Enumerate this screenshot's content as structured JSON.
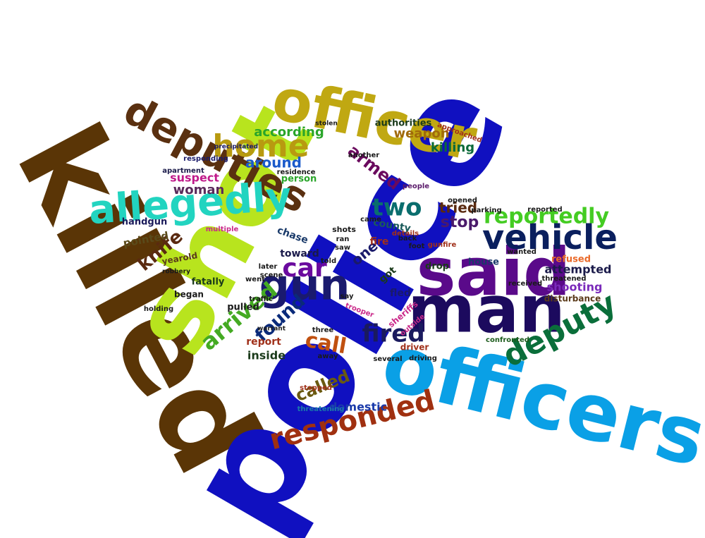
{
  "words": {
    "killed": "killed",
    "police": "police",
    "shot": "shot",
    "officers": "officers",
    "officer": "officer",
    "said": "said",
    "man": "man",
    "deputies": "deputies",
    "allegedly": "allegedly",
    "gun": "gun",
    "home": "home",
    "vehicle": "vehicle",
    "deputy": "deputy",
    "responded": "responded",
    "reportedly": "reportedly",
    "fired": "fired",
    "arrived": "arrived",
    "car": "car",
    "two": "two",
    "call": "call",
    "found": "found",
    "knife": "knife",
    "called": "called",
    "armed": "armed",
    "stop": "stop",
    "tried": "tried",
    "woman": "woman",
    "suspect": "suspect",
    "around": "around",
    "according": "according",
    "weapon": "weapon",
    "killing": "killing",
    "authorities": "authorities",
    "attempted": "attempted",
    "shooting": "shooting",
    "disturbance": "disturbance",
    "domestic": "domestic",
    "inside": "inside",
    "report": "report",
    "handgun": "handgun",
    "pointed": "pointed",
    "fatally": "fatally",
    "pulled": "pulled",
    "fled": "fled",
    "house": "house",
    "toward": "toward",
    "drop": "drop",
    "chase": "chase",
    "county": "county",
    "person": "person",
    "apartment": "apartment",
    "began": "began",
    "yearold": "yearold",
    "one": "one",
    "got": "got",
    "fire": "fire",
    "shots": "shots",
    "driver": "driver",
    "refused": "refused",
    "wanted": "wanted",
    "confronted": "confronted",
    "approached": "approached",
    "reported": "reported",
    "sheriffs": "sheriffs",
    "threatening": "threatening",
    "stopped": "stopped",
    "gunfire": "gunfire",
    "people": "people",
    "details": "details",
    "outside": "outside",
    "trooper": "trooper",
    "residence": "residence",
    "responding": "responding",
    "several": "several",
    "driving": "driving",
    "holding": "holding",
    "parking": "parking",
    "scene": "scene",
    "later": "later",
    "saw": "saw",
    "ran": "ran",
    "three": "three",
    "went": "went",
    "traffic": "traffic",
    "multiple": "multiple",
    "precipitated": "precipitated",
    "stolen": "stolen",
    "another": "another",
    "received": "received",
    "threatened": "threatened",
    "foot": "foot",
    "robbery": "robbery",
    "warrant": "warrant",
    "away": "away",
    "back": "back",
    "came": "came",
    "opened": "opened",
    "say": "say",
    "told": "told"
  },
  "colors": {
    "background": "#ffffff"
  }
}
